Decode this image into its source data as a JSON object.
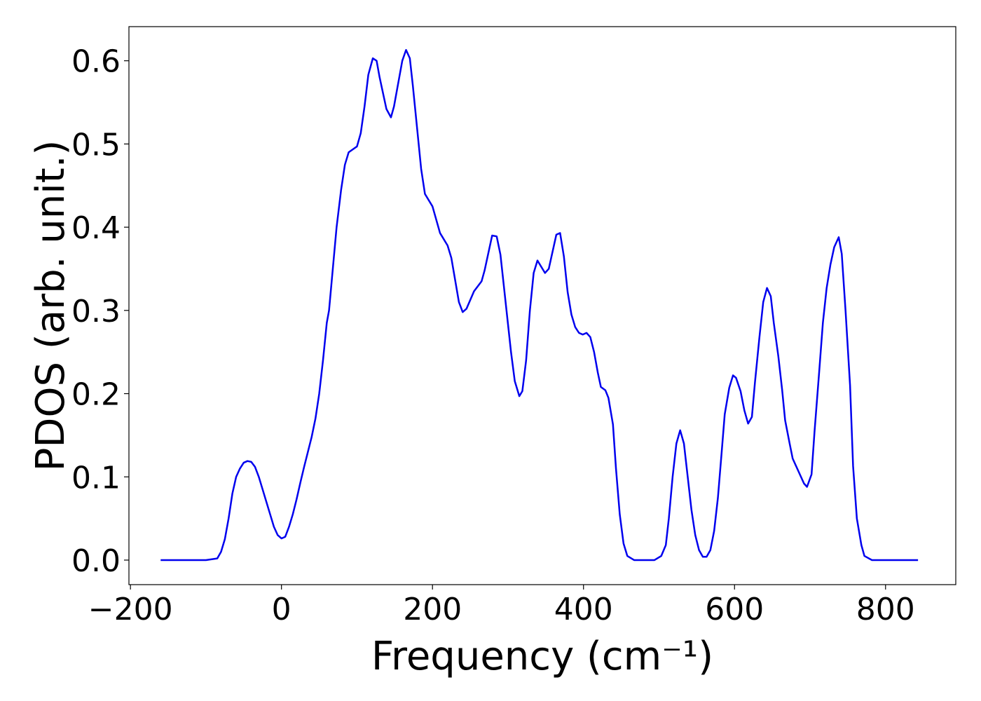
{
  "chart_data": {
    "type": "line",
    "xlabel": "Frequency (cm⁻¹)",
    "ylabel": "PDOS (arb. unit.)",
    "color": "#0000ee",
    "xlim": [
      -202,
      893
    ],
    "ylim": [
      -0.0295,
      0.641
    ],
    "xticks": [
      {
        "value": -200,
        "label": "−200"
      },
      0,
      200,
      400,
      600,
      800
    ],
    "yticks": [
      {
        "value": 0,
        "label": "0.0"
      },
      0.1,
      0.2,
      0.3,
      0.4,
      0.5,
      0.6
    ],
    "x": [
      -160,
      -100,
      -85,
      -80,
      -75,
      -70,
      -65,
      -60,
      -55,
      -50,
      -45,
      -40,
      -35,
      -30,
      -25,
      -20,
      -15,
      -10,
      -5,
      0,
      5,
      10,
      15,
      20,
      25,
      30,
      35,
      40,
      45,
      50,
      55,
      60,
      63,
      73,
      79,
      84,
      89,
      100,
      105,
      110,
      115,
      121,
      126,
      130,
      139,
      145,
      149,
      160,
      165,
      170,
      174,
      185,
      190,
      200,
      210,
      220,
      225,
      235,
      240,
      245,
      255,
      265,
      269,
      279,
      285,
      290,
      304,
      309,
      315,
      319,
      324,
      329,
      334,
      339,
      349,
      354,
      364,
      369,
      374,
      379,
      384,
      389,
      394,
      399,
      404,
      409,
      414,
      419,
      423,
      429,
      433,
      439,
      443,
      448,
      453,
      458,
      467,
      494,
      503,
      509,
      513,
      518,
      523,
      528,
      533,
      538,
      543,
      548,
      553,
      558,
      563,
      568,
      573,
      578,
      583,
      587,
      593,
      598,
      602,
      608,
      613,
      618,
      623,
      627,
      633,
      638,
      643,
      648,
      652,
      658,
      663,
      667,
      673,
      677,
      682,
      687,
      692,
      696,
      702,
      706,
      712,
      717,
      722,
      727,
      732,
      738,
      742,
      747,
      753,
      757,
      762,
      768,
      772,
      782,
      843
    ],
    "values": [
      0,
      0,
      0.002,
      0.01,
      0.025,
      0.05,
      0.08,
      0.1,
      0.11,
      0.117,
      0.119,
      0.118,
      0.112,
      0.1,
      0.085,
      0.07,
      0.055,
      0.04,
      0.03,
      0.026,
      0.028,
      0.04,
      0.055,
      0.073,
      0.093,
      0.112,
      0.13,
      0.148,
      0.17,
      0.2,
      0.24,
      0.285,
      0.3,
      0.4,
      0.445,
      0.475,
      0.49,
      0.497,
      0.513,
      0.545,
      0.583,
      0.603,
      0.6,
      0.58,
      0.542,
      0.532,
      0.545,
      0.6,
      0.613,
      0.603,
      0.57,
      0.47,
      0.44,
      0.425,
      0.393,
      0.378,
      0.363,
      0.31,
      0.298,
      0.302,
      0.323,
      0.335,
      0.348,
      0.39,
      0.389,
      0.367,
      0.25,
      0.215,
      0.197,
      0.203,
      0.24,
      0.3,
      0.345,
      0.36,
      0.345,
      0.35,
      0.391,
      0.393,
      0.365,
      0.322,
      0.295,
      0.28,
      0.273,
      0.271,
      0.273,
      0.268,
      0.25,
      0.225,
      0.208,
      0.204,
      0.195,
      0.163,
      0.11,
      0.055,
      0.02,
      0.005,
      0,
      0,
      0.005,
      0.018,
      0.05,
      0.1,
      0.14,
      0.156,
      0.14,
      0.1,
      0.06,
      0.03,
      0.012,
      0.004,
      0.004,
      0.012,
      0.035,
      0.075,
      0.13,
      0.175,
      0.207,
      0.222,
      0.219,
      0.203,
      0.18,
      0.164,
      0.172,
      0.213,
      0.268,
      0.31,
      0.327,
      0.317,
      0.285,
      0.245,
      0.205,
      0.168,
      0.14,
      0.122,
      0.112,
      0.102,
      0.092,
      0.088,
      0.103,
      0.155,
      0.225,
      0.285,
      0.327,
      0.355,
      0.376,
      0.388,
      0.368,
      0.3,
      0.21,
      0.113,
      0.05,
      0.018,
      0.005,
      0,
      0
    ]
  }
}
